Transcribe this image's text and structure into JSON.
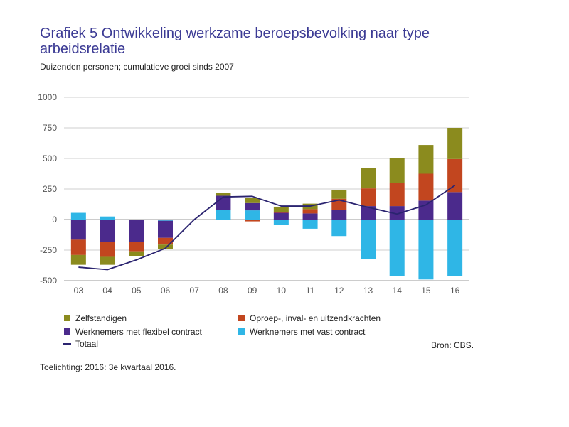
{
  "title": "Grafiek 5  Ontwikkeling werkzame beroepsbevolking naar type arbeidsrelatie",
  "subtitle": "Duizenden personen; cumulatieve groei sinds 2007",
  "source": "Bron: CBS.",
  "note": "Toelichting: 2016: 3e kwartaal 2016.",
  "chart_data": {
    "type": "bar",
    "stacked": true,
    "categories": [
      "03",
      "04",
      "05",
      "06",
      "07",
      "08",
      "09",
      "10",
      "11",
      "12",
      "13",
      "14",
      "15",
      "16"
    ],
    "ylim": [
      -500,
      1000
    ],
    "yticks": [
      1000,
      750,
      500,
      250,
      0,
      -250,
      -500
    ],
    "grid": true,
    "legend_position": "bottom",
    "series": [
      {
        "name": "Zelfstandigen",
        "color": "#8b8b1e",
        "values": [
          -80,
          -65,
          -40,
          -35,
          0,
          25,
          40,
          45,
          45,
          70,
          165,
          205,
          235,
          255
        ]
      },
      {
        "name": "Oproep-, inval- en uitzendkrachten",
        "color": "#c2461f",
        "values": [
          -125,
          -120,
          -75,
          -55,
          0,
          0,
          -15,
          5,
          35,
          90,
          145,
          190,
          220,
          270
        ]
      },
      {
        "name": "Werknemers met flexibel contract",
        "color": "#4b2a8c",
        "values": [
          -165,
          -185,
          -180,
          -140,
          0,
          115,
          60,
          55,
          50,
          80,
          110,
          110,
          155,
          225
        ]
      },
      {
        "name": "Werknemers met vast contract",
        "color": "#2fb6e6",
        "values": [
          55,
          25,
          -5,
          -10,
          0,
          80,
          75,
          -45,
          -75,
          -135,
          -325,
          -465,
          -490,
          -465
        ]
      }
    ],
    "line": {
      "name": "Totaal",
      "color": "#2b2470",
      "values": [
        -390,
        -410,
        -330,
        -235,
        0,
        185,
        190,
        110,
        110,
        160,
        100,
        45,
        120,
        280
      ]
    }
  }
}
